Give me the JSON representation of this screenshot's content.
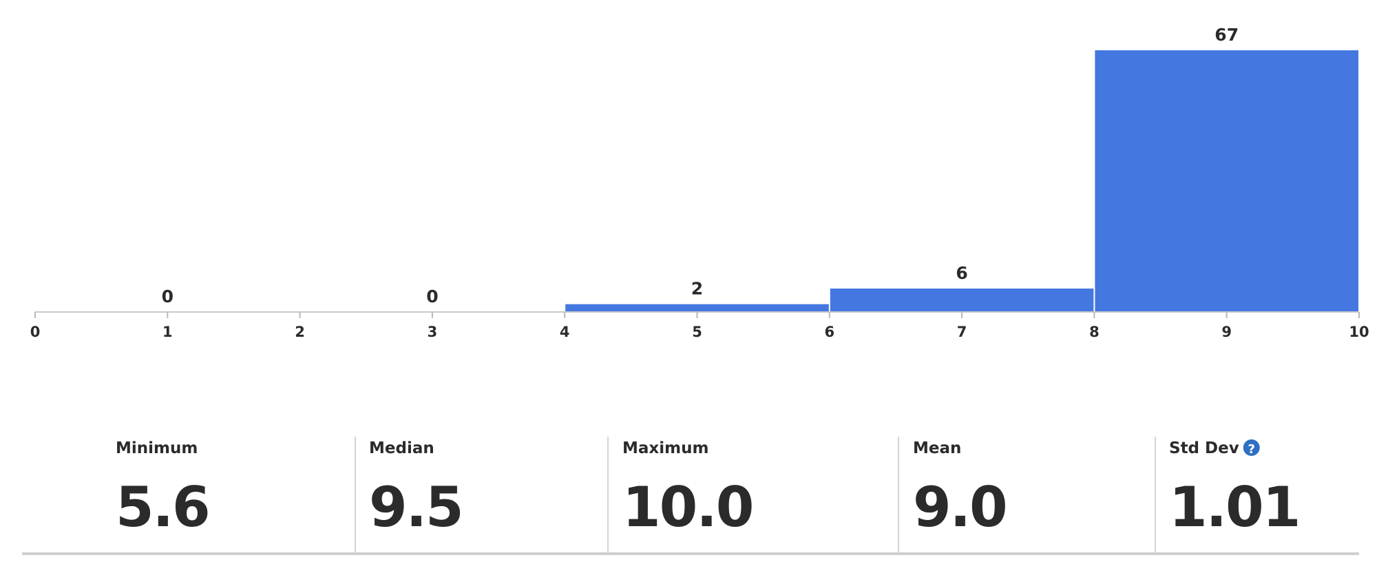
{
  "chart_data": {
    "type": "histogram",
    "bins": [
      0,
      2,
      4,
      6,
      8,
      10
    ],
    "values": [
      0,
      0,
      2,
      6,
      67
    ],
    "color": "#4577e0",
    "xlim": [
      0,
      10
    ],
    "xticks": [
      0,
      1,
      2,
      3,
      4,
      5,
      6,
      7,
      8,
      9,
      10
    ]
  },
  "stats": [
    {
      "label": "Minimum",
      "value": "5.6"
    },
    {
      "label": "Median",
      "value": "9.5"
    },
    {
      "label": "Maximum",
      "value": "10.0"
    },
    {
      "label": "Mean",
      "value": "9.0"
    },
    {
      "label": "Std Dev",
      "value": "1.01"
    }
  ]
}
